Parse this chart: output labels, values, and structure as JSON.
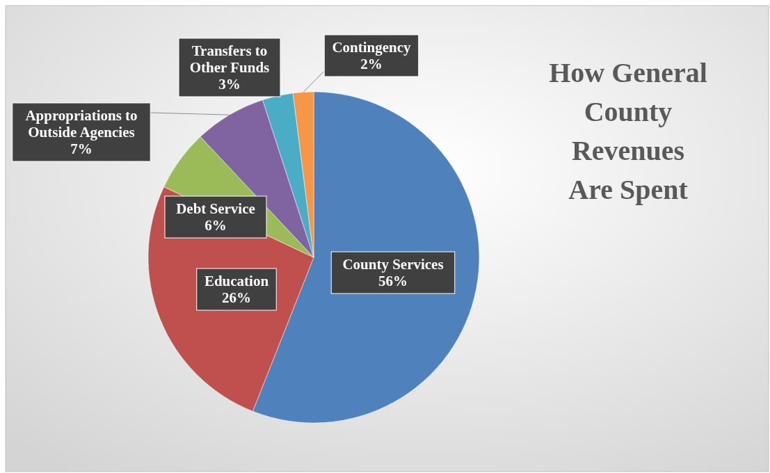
{
  "chart_data": {
    "type": "pie",
    "title": "How General County Revenues Are Spent",
    "categories": [
      "County Services",
      "Education",
      "Debt Service",
      "Appropriations to Outside Agencies",
      "Transfers to Other Funds",
      "Contingency"
    ],
    "values": [
      56,
      26,
      6,
      7,
      3,
      2
    ],
    "colors": [
      "#4f81bd",
      "#c0504d",
      "#9bbb59",
      "#8064a2",
      "#4bacc6",
      "#f79646"
    ],
    "value_labels": [
      "56%",
      "26%",
      "6%",
      "7%",
      "3%",
      "2%"
    ]
  }
}
